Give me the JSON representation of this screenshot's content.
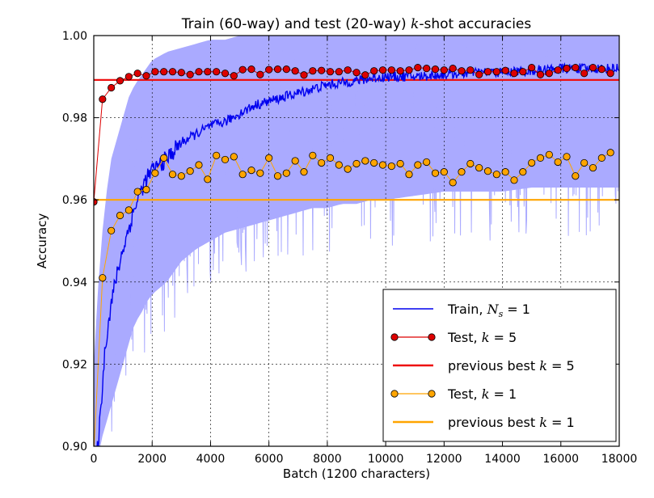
{
  "chart_data": {
    "type": "line",
    "title_prefix": "Train (60-way) and test (20-way) ",
    "title_k": "k",
    "title_suffix": "-shot accuracies",
    "xlabel": "Batch (1200 characters)",
    "ylabel": "Accuracy",
    "xlim": [
      0,
      18000
    ],
    "ylim": [
      0.9,
      1.0
    ],
    "x_ticks": [
      0,
      2000,
      4000,
      6000,
      8000,
      10000,
      12000,
      14000,
      16000,
      18000
    ],
    "x_tick_labels": [
      "0",
      "2000",
      "4000",
      "6000",
      "8000",
      "10000",
      "12000",
      "14000",
      "16000",
      "18000"
    ],
    "y_ticks": [
      0.9,
      0.92,
      0.94,
      0.96,
      0.98,
      1.0
    ],
    "y_tick_labels": [
      "0.90",
      "0.92",
      "0.94",
      "0.96",
      "0.98",
      "1.00"
    ],
    "grid": true,
    "legend_position": "lower-right",
    "colors": {
      "train": "#0000ee",
      "train_band": "#aaaaff",
      "test5": "#dd0000",
      "best5": "#ee1111",
      "test1": "#ffa500",
      "best1": "#ffa500"
    },
    "legend": [
      {
        "label": "Train, ",
        "math_sym": "N",
        "math_sub": "s",
        "math_rest": " = 1",
        "style": "line",
        "color": "#0000ee"
      },
      {
        "label": "Test, ",
        "math_sym": "k",
        "math_sub": "",
        "math_rest": " = 5",
        "style": "line-marker",
        "color": "#dd0000"
      },
      {
        "label": "previous best ",
        "math_sym": "k",
        "math_sub": "",
        "math_rest": " = 5",
        "style": "line",
        "color": "#ee1111"
      },
      {
        "label": "Test, ",
        "math_sym": "k",
        "math_sub": "",
        "math_rest": " = 1",
        "style": "line-marker",
        "color": "#ffa500"
      },
      {
        "label": "previous best ",
        "math_sym": "k",
        "math_sub": "",
        "math_rest": " = 1",
        "style": "line",
        "color": "#ffa500"
      }
    ],
    "series": [
      {
        "name": "Train, N_s = 1",
        "kind": "line-with-noise-band",
        "x": [
          0,
          200,
          400,
          600,
          800,
          1000,
          1200,
          1400,
          1600,
          1800,
          2000,
          2500,
          3000,
          3500,
          4000,
          4500,
          5000,
          5500,
          6000,
          6500,
          7000,
          7500,
          8000,
          8500,
          9000,
          9500,
          10000,
          11000,
          12000,
          13000,
          14000,
          15000,
          16000,
          17000,
          18000
        ],
        "values": [
          0.89,
          0.905,
          0.925,
          0.935,
          0.942,
          0.948,
          0.953,
          0.958,
          0.962,
          0.965,
          0.967,
          0.97,
          0.974,
          0.976,
          0.978,
          0.979,
          0.981,
          0.983,
          0.984,
          0.985,
          0.986,
          0.987,
          0.988,
          0.9885,
          0.989,
          0.9895,
          0.99,
          0.99,
          0.9905,
          0.991,
          0.991,
          0.9915,
          0.992,
          0.992,
          0.992
        ],
        "band_low": [
          0.89,
          0.9,
          0.905,
          0.91,
          0.915,
          0.92,
          0.925,
          0.93,
          0.932,
          0.935,
          0.937,
          0.94,
          0.945,
          0.948,
          0.95,
          0.952,
          0.953,
          0.954,
          0.955,
          0.956,
          0.957,
          0.958,
          0.958,
          0.959,
          0.959,
          0.96,
          0.96,
          0.961,
          0.962,
          0.962,
          0.962,
          0.963,
          0.963,
          0.963,
          0.963
        ],
        "band_high": [
          0.92,
          0.945,
          0.96,
          0.97,
          0.975,
          0.98,
          0.985,
          0.988,
          0.99,
          0.992,
          0.994,
          0.996,
          0.997,
          0.998,
          0.999,
          0.999,
          1.0,
          1.0,
          1.0,
          1.0,
          1.0,
          1.0,
          1.0,
          1.0,
          1.0,
          1.0,
          1.0,
          1.0,
          1.0,
          1.0,
          1.0,
          1.0,
          1.0,
          1.0,
          1.0
        ]
      },
      {
        "name": "Test, k = 5",
        "kind": "line-marker",
        "x": [
          0,
          300,
          600,
          900,
          1200,
          1500,
          1800,
          2100,
          2400,
          2700,
          3000,
          3300,
          3600,
          3900,
          4200,
          4500,
          4800,
          5100,
          5400,
          5700,
          6000,
          6300,
          6600,
          6900,
          7200,
          7500,
          7800,
          8100,
          8400,
          8700,
          9000,
          9300,
          9600,
          9900,
          10200,
          10500,
          10800,
          11100,
          11400,
          11700,
          12000,
          12300,
          12600,
          12900,
          13200,
          13500,
          13800,
          14100,
          14400,
          14700,
          15000,
          15300,
          15600,
          15900,
          16200,
          16500,
          16800,
          17100,
          17400,
          17700
        ],
        "values": [
          0.9595,
          0.9845,
          0.9873,
          0.989,
          0.99,
          0.9908,
          0.9902,
          0.9912,
          0.9912,
          0.9912,
          0.991,
          0.9905,
          0.9912,
          0.9912,
          0.9912,
          0.9908,
          0.9902,
          0.9917,
          0.9918,
          0.9905,
          0.9917,
          0.9918,
          0.9918,
          0.9914,
          0.9904,
          0.9914,
          0.9915,
          0.9912,
          0.9912,
          0.9916,
          0.991,
          0.9904,
          0.9914,
          0.9916,
          0.9916,
          0.9914,
          0.9916,
          0.9922,
          0.992,
          0.9918,
          0.9916,
          0.992,
          0.9914,
          0.9916,
          0.9905,
          0.9912,
          0.9912,
          0.9915,
          0.9908,
          0.9912,
          0.9922,
          0.9905,
          0.9908,
          0.9916,
          0.992,
          0.9922,
          0.9908,
          0.9922,
          0.9918,
          0.9908
        ]
      },
      {
        "name": "previous best k = 5",
        "kind": "hline",
        "value": 0.9892
      },
      {
        "name": "Test, k = 1",
        "kind": "line-marker",
        "x": [
          0,
          300,
          600,
          900,
          1200,
          1500,
          1800,
          2100,
          2400,
          2700,
          3000,
          3300,
          3600,
          3900,
          4200,
          4500,
          4800,
          5100,
          5400,
          5700,
          6000,
          6300,
          6600,
          6900,
          7200,
          7500,
          7800,
          8100,
          8400,
          8700,
          9000,
          9300,
          9600,
          9900,
          10200,
          10500,
          10800,
          11100,
          11400,
          11700,
          12000,
          12300,
          12600,
          12900,
          13200,
          13500,
          13800,
          14100,
          14400,
          14700,
          15000,
          15300,
          15600,
          15900,
          16200,
          16500,
          16800,
          17100,
          17400,
          17700
        ],
        "values": [
          0.898,
          0.941,
          0.9525,
          0.9562,
          0.9575,
          0.962,
          0.9625,
          0.9665,
          0.9702,
          0.9662,
          0.9658,
          0.967,
          0.9685,
          0.965,
          0.9708,
          0.9698,
          0.9705,
          0.9662,
          0.9672,
          0.9665,
          0.9702,
          0.9658,
          0.9665,
          0.9695,
          0.9668,
          0.9708,
          0.969,
          0.9702,
          0.9685,
          0.9675,
          0.9688,
          0.9695,
          0.969,
          0.9685,
          0.9682,
          0.9688,
          0.9662,
          0.9685,
          0.9692,
          0.9665,
          0.9668,
          0.9642,
          0.9668,
          0.9688,
          0.9678,
          0.967,
          0.9662,
          0.9668,
          0.9648,
          0.9668,
          0.969,
          0.9702,
          0.971,
          0.9692,
          0.9705,
          0.9658,
          0.969,
          0.9678,
          0.9702,
          0.9715
        ]
      },
      {
        "name": "previous best k = 1",
        "kind": "hline",
        "value": 0.96
      }
    ]
  }
}
